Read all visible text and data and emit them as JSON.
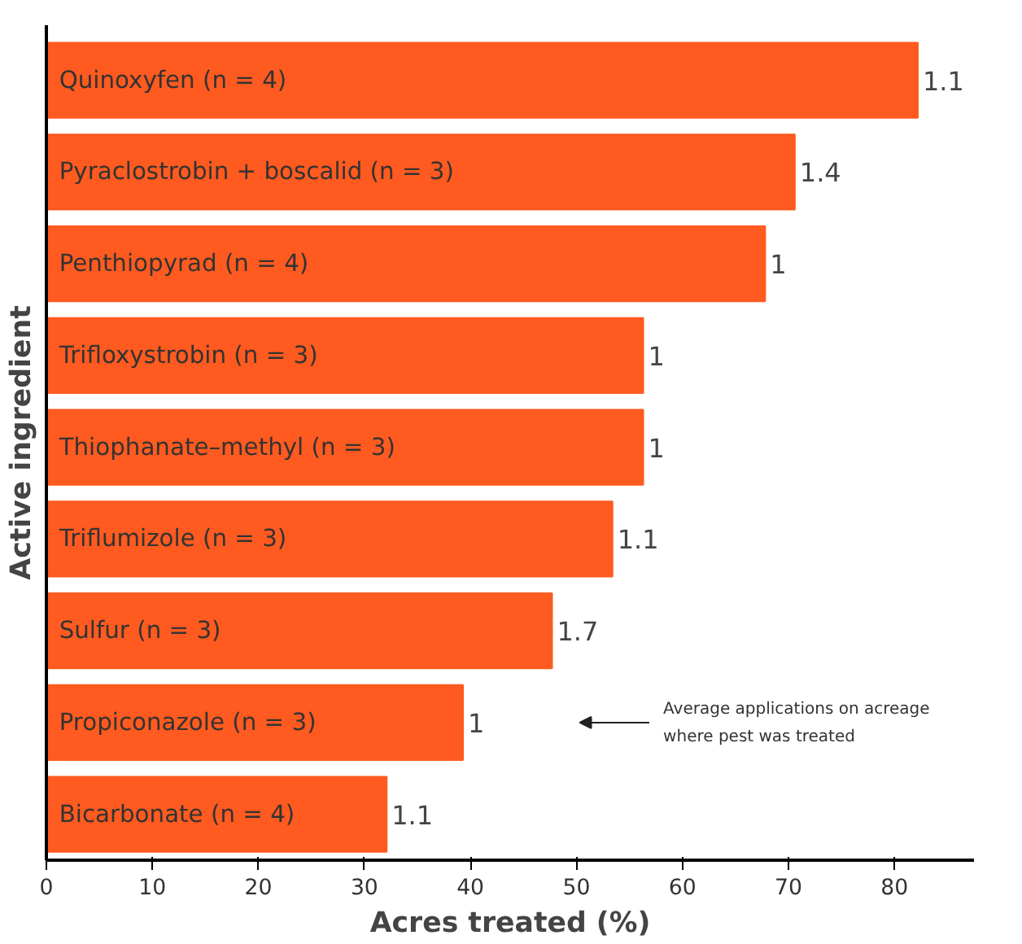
{
  "chart_data": {
    "type": "bar",
    "orientation": "horizontal",
    "xlabel": "Acres treated (%)",
    "ylabel": "Active ingredient",
    "categories": [
      "Quinoxyfen (n = 4)",
      "Pyraclostrobin + boscalid (n = 3)",
      "Penthiopyrad (n = 4)",
      "Trifloxystrobin (n = 3)",
      "Thiophanate–methyl (n = 3)",
      "Triflumizole (n = 3)",
      "Sulfur (n = 3)",
      "Propiconazole (n = 3)",
      "Bicarbonate (n = 4)"
    ],
    "values": [
      82.2,
      70.6,
      67.8,
      56.3,
      56.3,
      53.4,
      47.7,
      39.3,
      32.1
    ],
    "color": "#ff5a1f",
    "xlim": [
      0,
      87.5
    ],
    "xticks": [
      0,
      10,
      20,
      30,
      40,
      50,
      60,
      70,
      80
    ],
    "tick_labels": "x",
    "grid": false,
    "annotations": [
      {
        "text": "1.1",
        "x": 82.2,
        "y": "Quinoxyfen (n = 4)"
      },
      {
        "text": "1.4",
        "x": 70.6,
        "y": "Pyraclostrobin + boscalid (n = 3)"
      },
      {
        "text": "1",
        "x": 67.8,
        "y": "Penthiopyrad (n = 4)"
      },
      {
        "text": "1",
        "x": 56.3,
        "y": "Trifloxystrobin (n = 3)"
      },
      {
        "text": "1",
        "x": 56.3,
        "y": "Thiophanate–methyl (n = 3)"
      },
      {
        "text": "1.1",
        "x": 53.4,
        "y": "Triflumizole (n = 3)"
      },
      {
        "text": "1.7",
        "x": 47.7,
        "y": "Sulfur (n = 3)"
      },
      {
        "text": "1",
        "x": 39.3,
        "y": "Propiconazole (n = 3)"
      },
      {
        "text": "1.1",
        "x": 32.1,
        "y": "Bicarbonate (n = 4)"
      },
      "Average applications on acreage\nwhere pest was treated"
    ]
  }
}
